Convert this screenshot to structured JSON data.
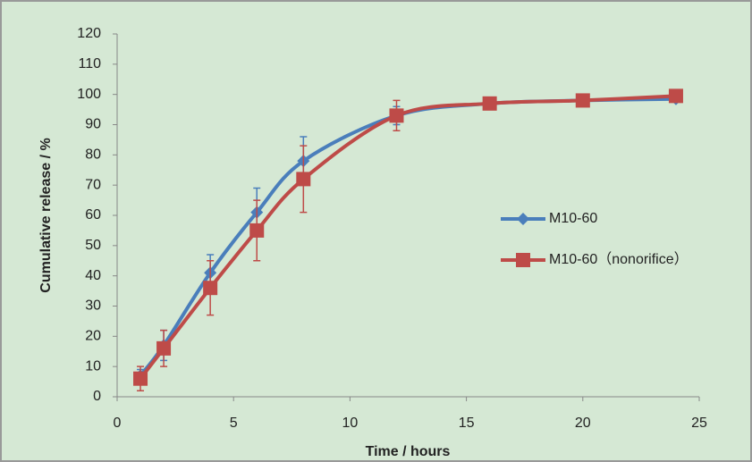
{
  "chart_data": {
    "type": "line",
    "x_label": "Time / hours",
    "y_label": "Cumulative release / %",
    "x": [
      1,
      2,
      4,
      6,
      8,
      12,
      16,
      20,
      24
    ],
    "series": [
      {
        "name": "M10-60",
        "color": "#4a7ebb",
        "marker": "diamond",
        "values": [
          7,
          17,
          41,
          61,
          78,
          93,
          97,
          98,
          98.5
        ],
        "errors": [
          2,
          5,
          6,
          8,
          8,
          3,
          1,
          1,
          1
        ]
      },
      {
        "name": "M10-60（nonorifice）",
        "color": "#be4b48",
        "marker": "square",
        "values": [
          6,
          16,
          36,
          55,
          72,
          93,
          97,
          98,
          99.5
        ],
        "errors": [
          4,
          6,
          9,
          10,
          11,
          5,
          1,
          1,
          1
        ]
      }
    ],
    "xlim": [
      0,
      25
    ],
    "xticks": [
      0,
      5,
      10,
      15,
      20,
      25
    ],
    "ylim": [
      0,
      120
    ],
    "yticks": [
      0,
      10,
      20,
      30,
      40,
      50,
      60,
      70,
      80,
      90,
      100,
      110,
      120
    ],
    "grid": false,
    "legend": "right"
  }
}
